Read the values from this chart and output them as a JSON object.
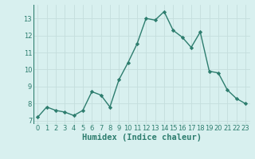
{
  "x": [
    0,
    1,
    2,
    3,
    4,
    5,
    6,
    7,
    8,
    9,
    10,
    11,
    12,
    13,
    14,
    15,
    16,
    17,
    18,
    19,
    20,
    21,
    22,
    23
  ],
  "y": [
    7.2,
    7.8,
    7.6,
    7.5,
    7.3,
    7.6,
    8.7,
    8.5,
    7.8,
    9.4,
    10.4,
    11.5,
    13.0,
    12.9,
    13.4,
    12.3,
    11.9,
    11.3,
    12.2,
    9.9,
    9.8,
    8.8,
    8.3,
    8.0
  ],
  "line_color": "#2d7d6e",
  "marker": "D",
  "marker_size": 2.2,
  "bg_color": "#d8f0ef",
  "grid_color": "#c4dedd",
  "xlabel": "Humidex (Indice chaleur)",
  "xlim": [
    -0.5,
    23.5
  ],
  "ylim": [
    6.8,
    13.8
  ],
  "yticks": [
    7,
    8,
    9,
    10,
    11,
    12,
    13
  ],
  "xticks": [
    0,
    1,
    2,
    3,
    4,
    5,
    6,
    7,
    8,
    9,
    10,
    11,
    12,
    13,
    14,
    15,
    16,
    17,
    18,
    19,
    20,
    21,
    22,
    23
  ],
  "tick_fontsize": 6.0,
  "xlabel_fontsize": 7.5,
  "line_width": 1.0
}
